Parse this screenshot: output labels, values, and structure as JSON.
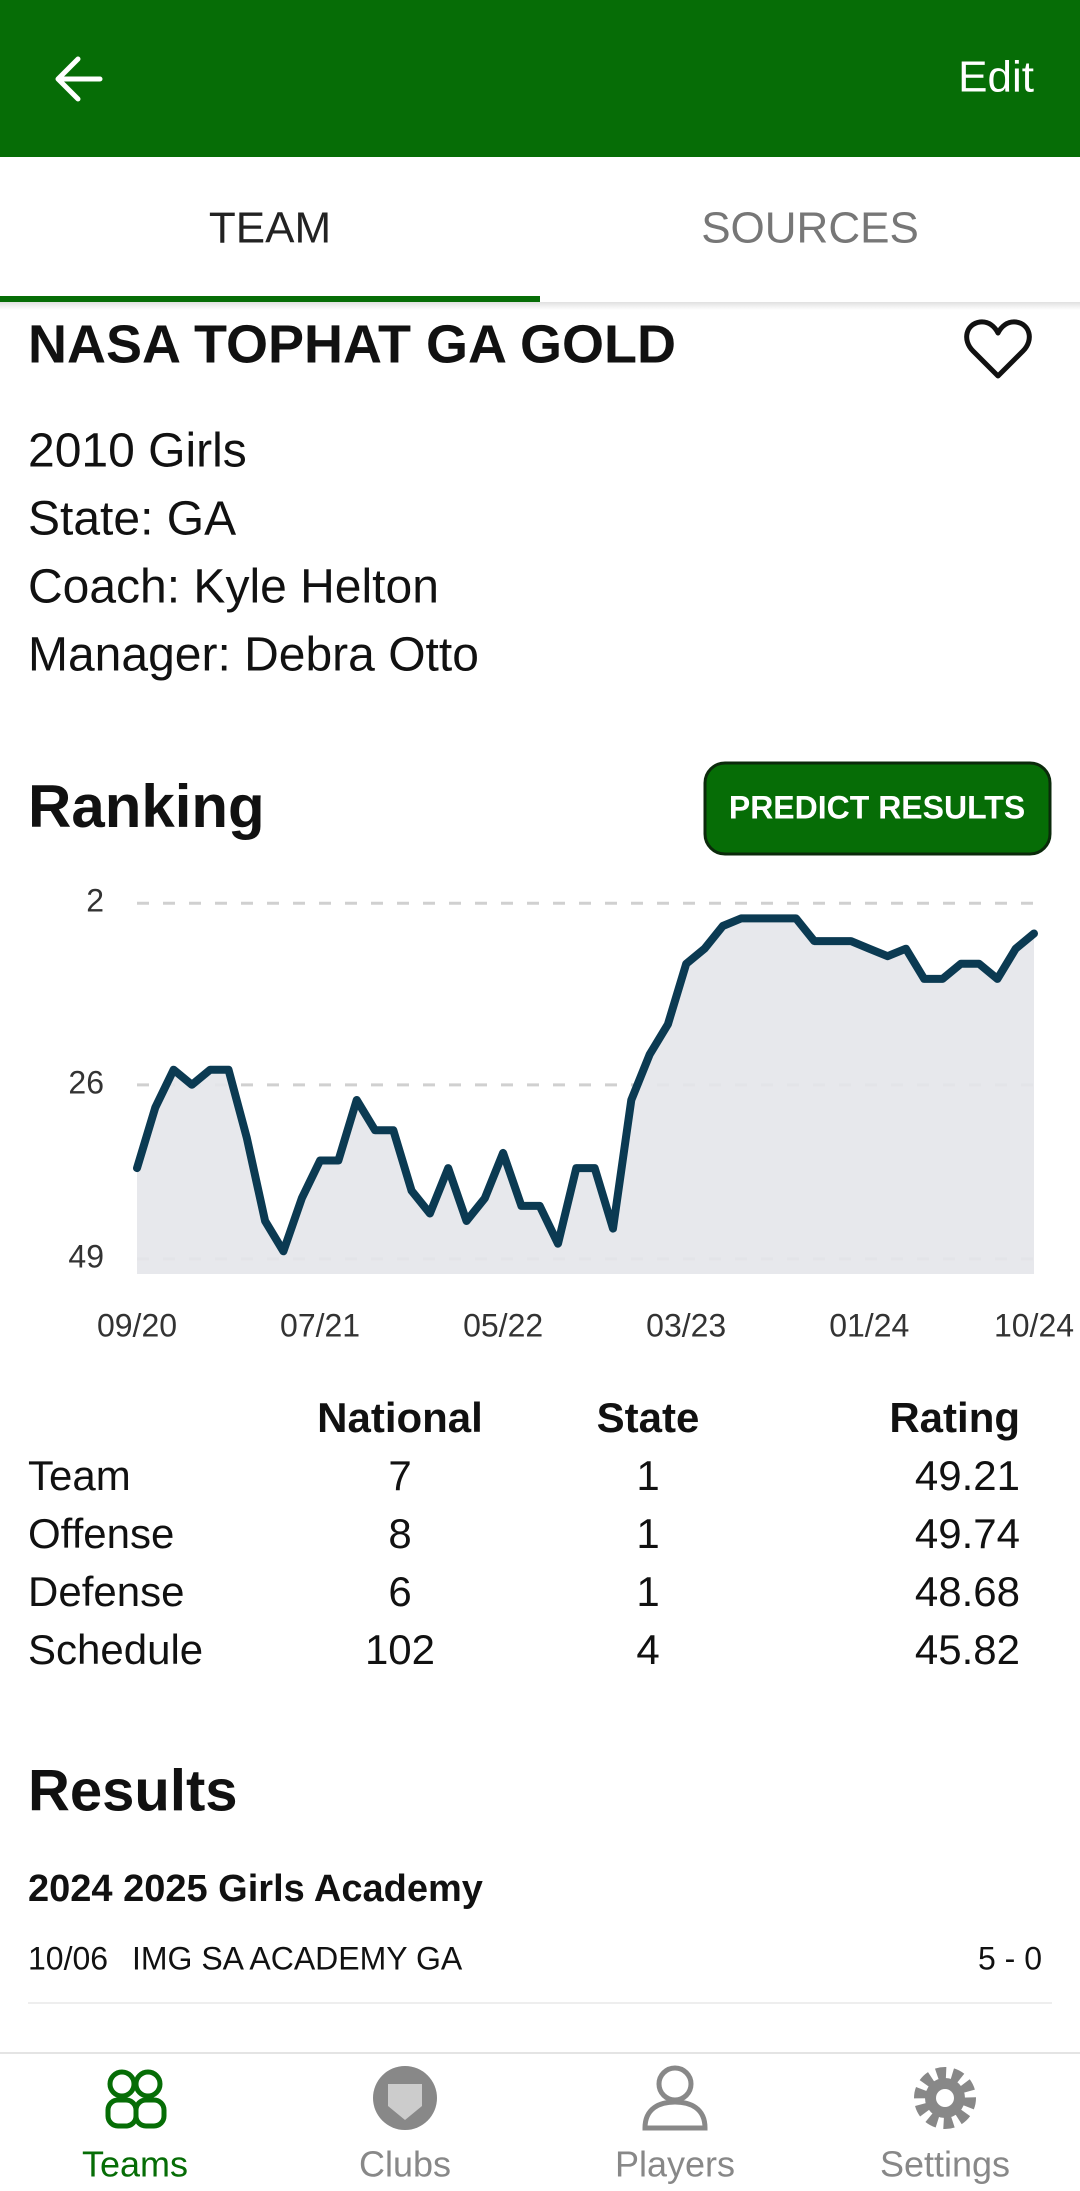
{
  "app_bar": {
    "action": "Edit"
  },
  "tabs": [
    "TEAM",
    "SOURCES"
  ],
  "team": {
    "name": "NASA TOPHAT GA GOLD",
    "details": [
      "2010 Girls",
      "State: GA",
      "Coach: Kyle Helton",
      "Manager: Debra Otto"
    ]
  },
  "ranking": {
    "title": "Ranking",
    "button": "PREDICT RESULTS"
  },
  "chart_data": {
    "type": "line",
    "categories": [
      "09/20",
      null,
      null,
      null,
      null,
      null,
      null,
      null,
      null,
      null,
      "07/21",
      null,
      null,
      null,
      null,
      null,
      null,
      null,
      null,
      null,
      "05/22",
      null,
      null,
      null,
      null,
      null,
      null,
      null,
      null,
      null,
      "03/23",
      null,
      null,
      null,
      null,
      null,
      null,
      null,
      null,
      null,
      "01/24",
      null,
      null,
      null,
      null,
      null,
      null,
      null,
      null,
      "10/24"
    ],
    "values": [
      37,
      29,
      24,
      26,
      24,
      24,
      33,
      44,
      48,
      41,
      36,
      36,
      28,
      32,
      32,
      40,
      43,
      37,
      44,
      41,
      35,
      42,
      42,
      47,
      37,
      37,
      45,
      28,
      22,
      18,
      10,
      8,
      5,
      4,
      4,
      4,
      4,
      7,
      7,
      7,
      8,
      9,
      8,
      12,
      12,
      10,
      10,
      12,
      8,
      6
    ],
    "color": "#0b3a52",
    "area_color": "#e4e6ea",
    "ylim": [
      51,
      -2
    ],
    "yticks": [
      2,
      26,
      49
    ],
    "grid": true
  },
  "ratings_table": {
    "columns": [
      "National",
      "State",
      "Rating"
    ],
    "rows": [
      [
        "Team",
        7,
        1,
        49.21
      ],
      [
        "Offense",
        8,
        1,
        49.74
      ],
      [
        "Defense",
        6,
        1,
        48.68
      ],
      [
        "Schedule",
        102,
        4,
        45.82
      ]
    ]
  },
  "results": {
    "title": "Results",
    "competition": "2024 2025 Girls Academy",
    "games": [
      {
        "date": "10/06",
        "opponent": "IMG SA ACADEMY GA",
        "score": "5 - 0"
      }
    ]
  },
  "nav": [
    "Teams",
    "Clubs",
    "Players",
    "Settings"
  ]
}
